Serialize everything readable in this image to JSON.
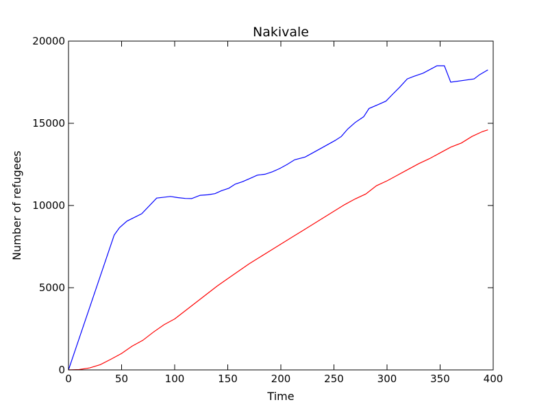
{
  "chart_data": {
    "type": "line",
    "title": "Nakivale",
    "xlabel": "Time",
    "ylabel": "Number of refugees",
    "xlim": [
      0,
      400
    ],
    "ylim": [
      0,
      20000
    ],
    "xticks": [
      0,
      50,
      100,
      150,
      200,
      250,
      300,
      350,
      400
    ],
    "yticks": [
      0,
      5000,
      10000,
      15000,
      20000
    ],
    "grid": false,
    "legend": false,
    "series": [
      {
        "color": "#0000ff",
        "points": [
          [
            0,
            0
          ],
          [
            43,
            8200
          ],
          [
            48,
            8650
          ],
          [
            55,
            9050
          ],
          [
            69,
            9500
          ],
          [
            83,
            10450
          ],
          [
            96,
            10550
          ],
          [
            103,
            10480
          ],
          [
            110,
            10430
          ],
          [
            116,
            10420
          ],
          [
            124,
            10620
          ],
          [
            131,
            10650
          ],
          [
            138,
            10720
          ],
          [
            144,
            10900
          ],
          [
            151,
            11050
          ],
          [
            157,
            11300
          ],
          [
            164,
            11450
          ],
          [
            171,
            11650
          ],
          [
            178,
            11850
          ],
          [
            185,
            11900
          ],
          [
            192,
            12050
          ],
          [
            199,
            12250
          ],
          [
            206,
            12500
          ],
          [
            213,
            12780
          ],
          [
            223,
            12950
          ],
          [
            230,
            13200
          ],
          [
            237,
            13450
          ],
          [
            244,
            13700
          ],
          [
            251,
            13950
          ],
          [
            257,
            14200
          ],
          [
            263,
            14650
          ],
          [
            270,
            15050
          ],
          [
            278,
            15400
          ],
          [
            283,
            15900
          ],
          [
            292,
            16150
          ],
          [
            299,
            16350
          ],
          [
            305,
            16750
          ],
          [
            312,
            17200
          ],
          [
            319,
            17700
          ],
          [
            325,
            17850
          ],
          [
            334,
            18050
          ],
          [
            347,
            18500
          ],
          [
            354,
            18500
          ],
          [
            360,
            17500
          ],
          [
            382,
            17700
          ],
          [
            387,
            17950
          ],
          [
            395,
            18250
          ]
        ]
      },
      {
        "color": "#ff0000",
        "points": [
          [
            0,
            0
          ],
          [
            10,
            20
          ],
          [
            20,
            120
          ],
          [
            30,
            320
          ],
          [
            40,
            650
          ],
          [
            50,
            1000
          ],
          [
            60,
            1450
          ],
          [
            70,
            1800
          ],
          [
            80,
            2300
          ],
          [
            90,
            2750
          ],
          [
            100,
            3100
          ],
          [
            110,
            3600
          ],
          [
            120,
            4100
          ],
          [
            130,
            4600
          ],
          [
            140,
            5100
          ],
          [
            150,
            5550
          ],
          [
            160,
            6000
          ],
          [
            170,
            6450
          ],
          [
            180,
            6850
          ],
          [
            190,
            7250
          ],
          [
            200,
            7650
          ],
          [
            210,
            8050
          ],
          [
            220,
            8450
          ],
          [
            230,
            8850
          ],
          [
            240,
            9250
          ],
          [
            250,
            9650
          ],
          [
            260,
            10050
          ],
          [
            270,
            10400
          ],
          [
            280,
            10700
          ],
          [
            290,
            11200
          ],
          [
            300,
            11500
          ],
          [
            310,
            11850
          ],
          [
            320,
            12200
          ],
          [
            330,
            12550
          ],
          [
            340,
            12850
          ],
          [
            350,
            13200
          ],
          [
            360,
            13550
          ],
          [
            370,
            13800
          ],
          [
            380,
            14200
          ],
          [
            390,
            14500
          ],
          [
            395,
            14600
          ]
        ]
      }
    ]
  }
}
